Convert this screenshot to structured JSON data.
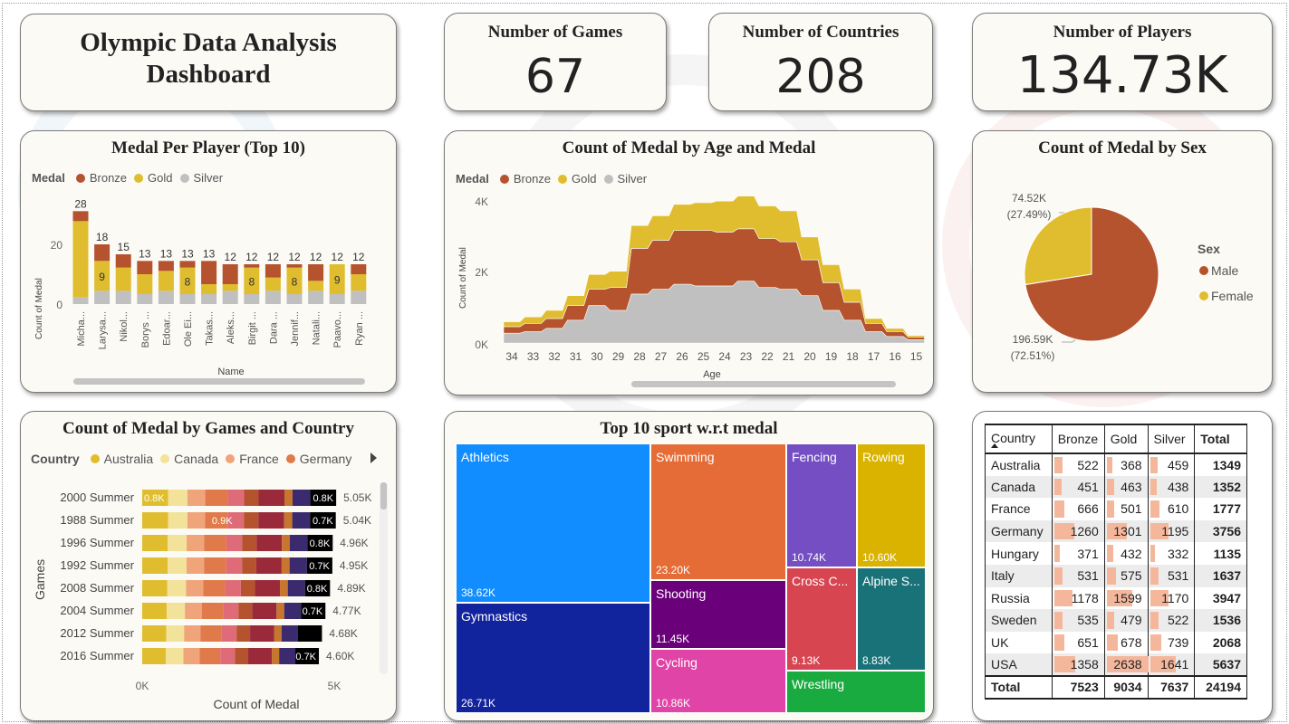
{
  "title": "Olympic Data Analysis Dashboard",
  "kpis": {
    "games": {
      "label": "Number of Games",
      "value": "67"
    },
    "countries": {
      "label": "Number of Countries",
      "value": "208"
    },
    "players": {
      "label": "Number of Players",
      "value": "134.73K"
    }
  },
  "colors": {
    "bronze": "#b5532e",
    "gold": "#e0bd2e",
    "silver": "#c0c0c0"
  },
  "medal_legend": {
    "title": "Medal",
    "items": [
      "Bronze",
      "Gold",
      "Silver"
    ]
  },
  "medal_per_player": {
    "title": "Medal Per Player (Top 10)",
    "ylabel": "Count of Medal",
    "xlabel": "Name",
    "yticks": [
      "20",
      "0"
    ],
    "chart_data": {
      "type": "bar",
      "stacked": true,
      "categories": [
        "Micha...",
        "Larysa...",
        "Nikol...",
        "Borys ...",
        "Edoar...",
        "Ole Ei...",
        "Takas...",
        "Aleks...",
        "Birgit ...",
        "Dara ...",
        "Jennif...",
        "Natali...",
        "Paavo...",
        "Ryan ..."
      ],
      "totals": [
        28,
        18,
        15,
        13,
        13,
        13,
        13,
        12,
        12,
        12,
        12,
        12,
        12,
        12
      ],
      "series": [
        {
          "name": "Silver",
          "values": [
            2,
            4,
            4,
            3,
            4,
            3,
            3,
            4,
            3,
            4,
            3,
            4,
            3,
            4
          ]
        },
        {
          "name": "Gold",
          "values": [
            23,
            9,
            7,
            6,
            6,
            8,
            3,
            2,
            8,
            4,
            8,
            3,
            9,
            5
          ]
        },
        {
          "name": "Bronze",
          "values": [
            3,
            5,
            4,
            4,
            3,
            2,
            7,
            6,
            1,
            4,
            1,
            5,
            0,
            3
          ]
        }
      ],
      "inner_labels": [
        "",
        "9",
        "",
        "",
        "",
        "8",
        "",
        "",
        "8",
        "",
        "8",
        "",
        "9",
        ""
      ],
      "ylim": [
        0,
        30
      ]
    }
  },
  "medal_by_age": {
    "title": "Count of Medal by Age and Medal",
    "ylabel": "Count of Medal",
    "xlabel": "Age",
    "yticks": [
      "4K",
      "2K",
      "0K"
    ],
    "chart_data": {
      "type": "area",
      "stacked": true,
      "x": [
        "34",
        "33",
        "32",
        "31",
        "30",
        "29",
        "28",
        "27",
        "26",
        "25",
        "24",
        "23",
        "22",
        "21",
        "20",
        "19",
        "18",
        "17",
        "16",
        "15"
      ],
      "series": [
        {
          "name": "Silver",
          "values": [
            300,
            350,
            450,
            700,
            1150,
            1000,
            1500,
            1650,
            1800,
            1750,
            1750,
            1900,
            1700,
            1650,
            1450,
            1000,
            700,
            350,
            200,
            100
          ]
        },
        {
          "name": "Bronze",
          "values": [
            200,
            250,
            300,
            450,
            500,
            700,
            1400,
            1500,
            1650,
            1700,
            1650,
            1600,
            1500,
            1450,
            1100,
            850,
            550,
            250,
            150,
            80
          ]
        },
        {
          "name": "Gold",
          "values": [
            150,
            200,
            250,
            300,
            450,
            500,
            700,
            750,
            800,
            850,
            950,
            1000,
            1000,
            950,
            700,
            550,
            400,
            150,
            100,
            50
          ]
        }
      ],
      "ylim": [
        0,
        4500
      ]
    }
  },
  "medal_by_sex": {
    "title": "Count of Medal by Sex",
    "legend_title": "Sex",
    "chart_data": {
      "type": "pie",
      "slices": [
        {
          "name": "Male",
          "value": 196590,
          "label": "196.59K",
          "pct": "(72.51%)",
          "color": "#b5532e"
        },
        {
          "name": "Female",
          "value": 74520,
          "label": "74.52K",
          "pct": "(27.49%)",
          "color": "#e0bd2e"
        }
      ]
    }
  },
  "games_country": {
    "title": "Count of Medal by Games and Country",
    "legend_title": "Country",
    "legend": [
      {
        "name": "Australia",
        "color": "#e0bd2e"
      },
      {
        "name": "Canada",
        "color": "#f2e29a"
      },
      {
        "name": "France",
        "color": "#f0a47a"
      },
      {
        "name": "Germany",
        "color": "#e07a4a"
      }
    ],
    "ylabel": "Games",
    "xlabel": "Count of Medal",
    "xticks": [
      "0K",
      "5K"
    ],
    "chart_data": {
      "type": "bar",
      "orientation": "horizontal",
      "stacked": true,
      "categories": [
        "2000 Summer",
        "1988 Summer",
        "1996 Summer",
        "1992 Summer",
        "2008 Summer",
        "2004 Summer",
        "2012 Summer",
        "2016 Summer"
      ],
      "totals": [
        "5.05K",
        "5.04K",
        "4.96K",
        "4.95K",
        "4.89K",
        "4.77K",
        "4.68K",
        "4.60K"
      ],
      "total_values": [
        5050,
        5040,
        4960,
        4950,
        4890,
        4770,
        4680,
        4600
      ],
      "first_labels": [
        "0.8K",
        "",
        "",
        "",
        "",
        "",
        "",
        ""
      ],
      "mid_labels": [
        "",
        "0.9K",
        "",
        "",
        "",
        "",
        "",
        ""
      ],
      "last_labels": [
        "0.8K",
        "0.7K",
        "0.8K",
        "0.7K",
        "0.8K",
        "0.7K",
        "",
        "0.7K"
      ],
      "xlim": [
        0,
        5500
      ]
    }
  },
  "top_sports": {
    "title": "Top 10 sport w.r.t medal",
    "chart_data": {
      "type": "treemap",
      "items": [
        {
          "name": "Athletics",
          "value": "38.62K",
          "color": "#118dff"
        },
        {
          "name": "Gymnastics",
          "value": "26.71K",
          "color": "#12239e"
        },
        {
          "name": "Swimming",
          "value": "23.20K",
          "color": "#e66c37"
        },
        {
          "name": "Shooting",
          "value": "11.45K",
          "color": "#6b007b"
        },
        {
          "name": "Cycling",
          "value": "10.86K",
          "color": "#e044a7"
        },
        {
          "name": "Fencing",
          "value": "10.74K",
          "color": "#744ec2"
        },
        {
          "name": "Rowing",
          "value": "10.60K",
          "color": "#d9b300"
        },
        {
          "name": "Cross C...",
          "value": "9.13K",
          "color": "#d64550"
        },
        {
          "name": "Alpine S...",
          "value": "8.83K",
          "color": "#197278"
        },
        {
          "name": "Wrestling",
          "value": "",
          "color": "#1aab40"
        }
      ]
    }
  },
  "medal_table": {
    "headers": [
      "Country",
      "Bronze",
      "Gold",
      "Silver",
      "Total"
    ],
    "rows": [
      {
        "country": "Australia",
        "bronze": "522",
        "gold": "368",
        "silver": "459",
        "total": "1349",
        "b": 522,
        "g": 368,
        "s": 459
      },
      {
        "country": "Canada",
        "bronze": "451",
        "gold": "463",
        "silver": "438",
        "total": "1352",
        "b": 451,
        "g": 463,
        "s": 438
      },
      {
        "country": "France",
        "bronze": "666",
        "gold": "501",
        "silver": "610",
        "total": "1777",
        "b": 666,
        "g": 501,
        "s": 610
      },
      {
        "country": "Germany",
        "bronze": "1260",
        "gold": "1301",
        "silver": "1195",
        "total": "3756",
        "b": 1260,
        "g": 1301,
        "s": 1195
      },
      {
        "country": "Hungary",
        "bronze": "371",
        "gold": "432",
        "silver": "332",
        "total": "1135",
        "b": 371,
        "g": 432,
        "s": 332
      },
      {
        "country": "Italy",
        "bronze": "531",
        "gold": "575",
        "silver": "531",
        "total": "1637",
        "b": 531,
        "g": 575,
        "s": 531
      },
      {
        "country": "Russia",
        "bronze": "1178",
        "gold": "1599",
        "silver": "1170",
        "total": "3947",
        "b": 1178,
        "g": 1599,
        "s": 1170
      },
      {
        "country": "Sweden",
        "bronze": "535",
        "gold": "479",
        "silver": "522",
        "total": "1536",
        "b": 535,
        "g": 479,
        "s": 522
      },
      {
        "country": "UK",
        "bronze": "651",
        "gold": "678",
        "silver": "739",
        "total": "2068",
        "b": 651,
        "g": 678,
        "s": 739
      },
      {
        "country": "USA",
        "bronze": "1358",
        "gold": "2638",
        "silver": "1641",
        "total": "5637",
        "b": 1358,
        "g": 2638,
        "s": 1641
      }
    ],
    "total_row": {
      "label": "Total",
      "bronze": "7523",
      "gold": "9034",
      "silver": "7637",
      "total": "24194"
    }
  }
}
